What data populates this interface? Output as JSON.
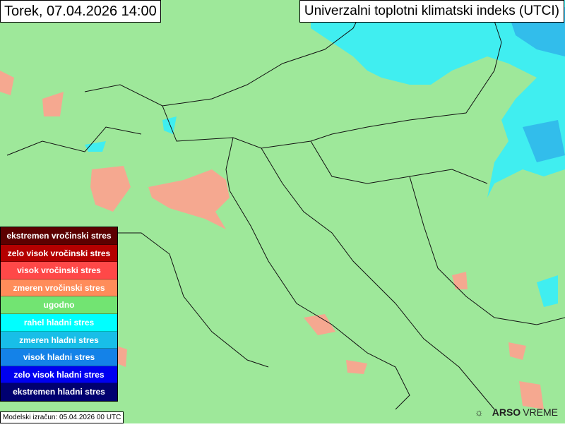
{
  "header": {
    "date": "Torek, 07.04.2026 14:00",
    "title": "Univerzalni toplotni klimatski indeks (UTCI)"
  },
  "legend": {
    "items": [
      {
        "label": "ekstremen vročinski stres",
        "color": "#5c0000"
      },
      {
        "label": "zelo visok vročinski stres",
        "color": "#b40000"
      },
      {
        "label": "visok vročinski stres",
        "color": "#ff4848"
      },
      {
        "label": "zmeren vročinski stres",
        "color": "#ff8c5a"
      },
      {
        "label": "ugodno",
        "color": "#72e472"
      },
      {
        "label": "rahel hladni stres",
        "color": "#00ffff"
      },
      {
        "label": "zmeren hladni stres",
        "color": "#18bee8"
      },
      {
        "label": "visok hladni stres",
        "color": "#1482e8"
      },
      {
        "label": "zelo visok hladni stres",
        "color": "#0000f0"
      },
      {
        "label": "ekstremen hladni stres",
        "color": "#000070"
      }
    ]
  },
  "footer": {
    "model_run": "Modelski izračun: 05.04.2026 00 UTC"
  },
  "logo": {
    "brand": "ARSO",
    "product": "VREME"
  },
  "colors": {
    "background": "#9ee89a",
    "heat_moderate": "#f5a890",
    "cold_slight": "#30f0f0"
  }
}
